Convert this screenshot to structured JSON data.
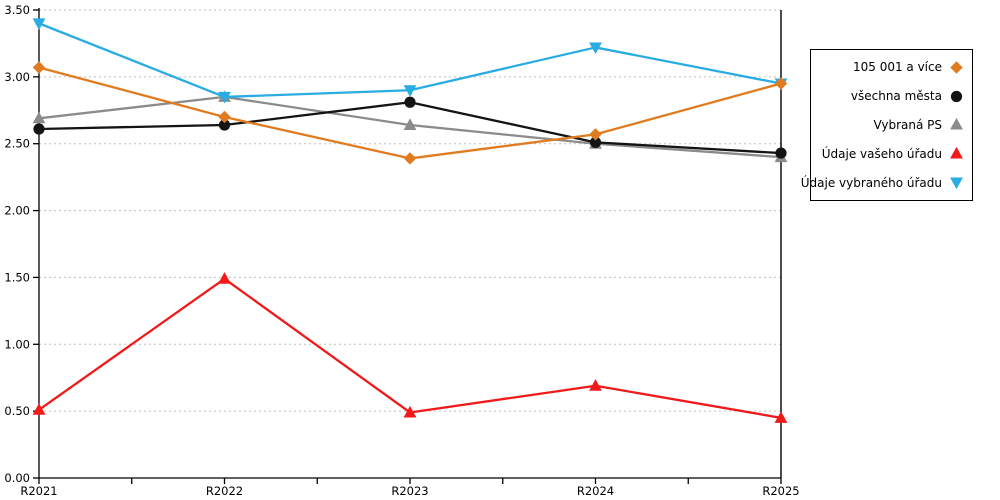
{
  "chart_data": {
    "type": "line",
    "title": "",
    "xlabel": "",
    "ylabel": "",
    "categories": [
      "R2021",
      "R2022",
      "R2023",
      "R2024",
      "R2025"
    ],
    "ylim": [
      0,
      3.5
    ],
    "ytick_step": 0.5,
    "ytick_format_decimals": 2,
    "grid": "horizontal-dashed",
    "legend_position": "right-outside",
    "series": [
      {
        "name": "105 001 a více",
        "color": "#E07B1F",
        "marker": "diamond",
        "values": [
          3.07,
          2.7,
          2.39,
          2.57,
          2.95
        ]
      },
      {
        "name": "všechna města",
        "color": "#141414",
        "marker": "circle",
        "values": [
          2.61,
          2.64,
          2.81,
          2.51,
          2.43
        ]
      },
      {
        "name": "Vybraná PS",
        "color": "#8B8B8B",
        "marker": "triangle-up",
        "values": [
          2.69,
          2.85,
          2.64,
          2.5,
          2.4
        ]
      },
      {
        "name": "Údaje vašeho úřadu",
        "color": "#F01A1A",
        "marker": "triangle-up",
        "values": [
          0.51,
          1.49,
          0.49,
          0.69,
          0.45
        ]
      },
      {
        "name": "Údaje vybraného úřadu",
        "color": "#29ACE3",
        "marker": "triangle-down",
        "values": [
          3.4,
          2.85,
          2.9,
          3.22,
          2.95
        ]
      }
    ],
    "draw_order": [
      2,
      4,
      1,
      3,
      0
    ],
    "colors": {
      "axis": "#000000",
      "grid": "#BDBDBD",
      "background": "#FFFFFF",
      "legend_border": "#000000",
      "tick_label": "#000000"
    }
  }
}
